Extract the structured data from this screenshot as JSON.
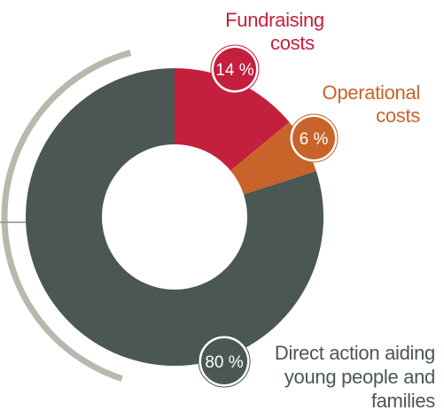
{
  "chart_data": {
    "type": "donut",
    "categories": [
      "Fundraising costs",
      "Operational costs",
      "Direct action aiding young people and families"
    ],
    "values": [
      14,
      6,
      80
    ],
    "value_labels": [
      "14 %",
      "6 %",
      "80 %"
    ],
    "colors": [
      "#c41f3c",
      "#c8632a",
      "#4a5752"
    ],
    "label_lines": [
      [
        "Fundraising",
        "costs"
      ],
      [
        "Operational",
        "costs"
      ],
      [
        "Direct action aiding",
        "young people and",
        "families"
      ]
    ],
    "arc_color": "#b7b9ad",
    "connector_color": "#8d918a"
  }
}
